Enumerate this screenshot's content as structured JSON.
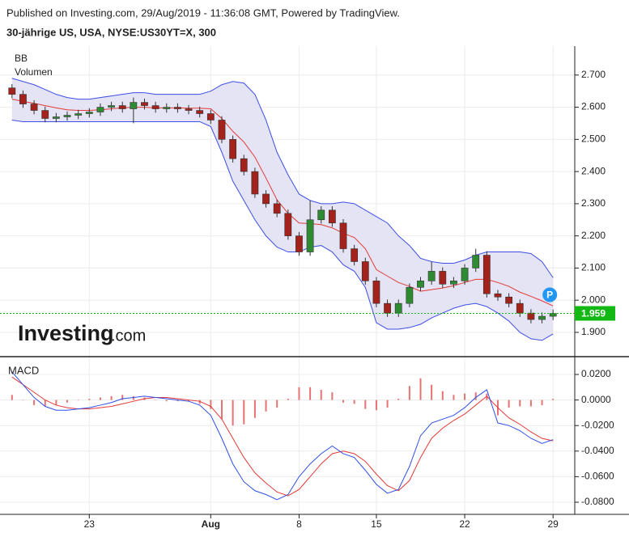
{
  "header": {
    "published": "Published on Investing.com, 29/Aug/2019 - 11:36:08 GMT, Powered by TradingView.",
    "symbol": "30-jährige US, USA, NYSE:US30YT=X, 300"
  },
  "logo": {
    "brand": "Investing",
    "suffix": ".com"
  },
  "chart_data": [
    {
      "type": "candlestick",
      "indicators": [
        "BB",
        "Volumen"
      ],
      "marker": "P",
      "open": [
        2.66,
        2.64,
        2.61,
        2.59,
        2.565,
        2.57,
        2.575,
        2.58,
        2.585,
        2.6,
        2.605,
        2.595,
        2.615,
        2.605,
        2.595,
        2.6,
        2.595,
        2.59,
        2.58,
        2.56,
        2.5,
        2.44,
        2.4,
        2.33,
        2.3,
        2.27,
        2.2,
        2.15,
        2.25,
        2.28,
        2.24,
        2.16,
        2.12,
        2.06,
        1.99,
        1.96,
        1.99,
        2.04,
        2.06,
        2.09,
        2.05,
        2.06,
        2.1,
        2.14,
        2.02,
        2.01,
        1.99,
        1.96,
        1.94,
        1.95
      ],
      "high": [
        2.672,
        2.652,
        2.622,
        2.602,
        2.582,
        2.587,
        2.592,
        2.597,
        2.612,
        2.617,
        2.617,
        2.63,
        2.627,
        2.617,
        2.612,
        2.612,
        2.607,
        2.602,
        2.592,
        2.572,
        2.512,
        2.452,
        2.412,
        2.342,
        2.312,
        2.282,
        2.212,
        2.31,
        2.292,
        2.292,
        2.252,
        2.172,
        2.132,
        2.072,
        2.002,
        2.002,
        2.052,
        2.072,
        2.12,
        2.102,
        2.072,
        2.112,
        2.16,
        2.152,
        2.032,
        2.022,
        2.002,
        1.972,
        1.962,
        1.971
      ],
      "low": [
        2.628,
        2.598,
        2.578,
        2.553,
        2.553,
        2.558,
        2.563,
        2.568,
        2.573,
        2.588,
        2.583,
        2.55,
        2.593,
        2.583,
        2.583,
        2.583,
        2.578,
        2.568,
        2.548,
        2.488,
        2.428,
        2.388,
        2.318,
        2.288,
        2.258,
        2.188,
        2.138,
        2.138,
        2.238,
        2.228,
        2.148,
        2.108,
        2.048,
        1.978,
        1.948,
        1.948,
        1.978,
        2.028,
        2.048,
        2.038,
        2.038,
        2.048,
        2.088,
        2.008,
        1.998,
        1.978,
        1.948,
        1.928,
        1.928,
        1.938
      ],
      "close": [
        2.64,
        2.61,
        2.59,
        2.565,
        2.57,
        2.575,
        2.58,
        2.585,
        2.6,
        2.605,
        2.595,
        2.615,
        2.605,
        2.595,
        2.6,
        2.595,
        2.59,
        2.58,
        2.56,
        2.5,
        2.44,
        2.4,
        2.33,
        2.3,
        2.27,
        2.2,
        2.15,
        2.25,
        2.28,
        2.24,
        2.16,
        2.12,
        2.06,
        1.99,
        1.96,
        1.99,
        2.04,
        2.06,
        2.09,
        2.05,
        2.06,
        2.1,
        2.14,
        2.02,
        2.01,
        1.99,
        1.96,
        1.94,
        1.95,
        1.959
      ],
      "up_color": "#2e8b32",
      "down_color": "#a3221c",
      "band_fill": "#e4e4f4",
      "upper": {
        "color": "#3d4ee6",
        "values": [
          2.69,
          2.68,
          2.67,
          2.655,
          2.64,
          2.63,
          2.625,
          2.625,
          2.63,
          2.635,
          2.64,
          2.645,
          2.645,
          2.64,
          2.64,
          2.64,
          2.64,
          2.64,
          2.65,
          2.67,
          2.68,
          2.675,
          2.64,
          2.56,
          2.46,
          2.39,
          2.33,
          2.31,
          2.3,
          2.3,
          2.305,
          2.3,
          2.28,
          2.26,
          2.24,
          2.2,
          2.17,
          2.13,
          2.12,
          2.115,
          2.115,
          2.125,
          2.14,
          2.15,
          2.15,
          2.15,
          2.15,
          2.145,
          2.12,
          2.07
        ]
      },
      "middle": {
        "color": "#e53935",
        "values": [
          2.625,
          2.618,
          2.612,
          2.605,
          2.598,
          2.592,
          2.59,
          2.59,
          2.592,
          2.595,
          2.598,
          2.6,
          2.6,
          2.598,
          2.598,
          2.598,
          2.597,
          2.597,
          2.595,
          2.565,
          2.525,
          2.492,
          2.445,
          2.38,
          2.312,
          2.27,
          2.24,
          2.238,
          2.235,
          2.225,
          2.208,
          2.195,
          2.16,
          2.095,
          2.075,
          2.055,
          2.043,
          2.028,
          2.033,
          2.038,
          2.045,
          2.055,
          2.065,
          2.065,
          2.055,
          2.043,
          2.025,
          2.012,
          1.998,
          1.982
        ]
      },
      "lower": {
        "color": "#3d4ee6",
        "values": [
          2.56,
          2.555,
          2.555,
          2.555,
          2.555,
          2.555,
          2.555,
          2.555,
          2.555,
          2.555,
          2.555,
          2.555,
          2.555,
          2.555,
          2.555,
          2.555,
          2.555,
          2.555,
          2.54,
          2.46,
          2.37,
          2.31,
          2.25,
          2.2,
          2.165,
          2.15,
          2.15,
          2.165,
          2.17,
          2.15,
          2.11,
          2.09,
          2.04,
          1.93,
          1.91,
          1.91,
          1.915,
          1.925,
          1.945,
          1.96,
          1.975,
          1.985,
          1.99,
          1.98,
          1.96,
          1.935,
          1.9,
          1.88,
          1.875,
          1.895
        ]
      },
      "last_price": 1.959,
      "last_price_color": "#14b814",
      "ylim": [
        1.827,
        2.79
      ],
      "yticks": [
        {
          "value": 1.9,
          "label": "1.900"
        },
        {
          "value": 2.0,
          "label": "2.000"
        },
        {
          "value": 2.1,
          "label": "2.100"
        },
        {
          "value": 2.2,
          "label": "2.200"
        },
        {
          "value": 2.3,
          "label": "2.300"
        },
        {
          "value": 2.4,
          "label": "2.400"
        },
        {
          "value": 2.5,
          "label": "2.500"
        },
        {
          "value": 2.6,
          "label": "2.600"
        },
        {
          "value": 2.7,
          "label": "2.700"
        }
      ],
      "grid": true
    },
    {
      "type": "macd",
      "title": "MACD",
      "categories": [
        null,
        null,
        null,
        null,
        null,
        null,
        null,
        "23",
        null,
        null,
        null,
        null,
        null,
        null,
        null,
        null,
        null,
        null,
        "Aug",
        null,
        null,
        null,
        null,
        null,
        null,
        null,
        "8",
        null,
        null,
        null,
        null,
        null,
        null,
        "15",
        null,
        null,
        null,
        null,
        null,
        null,
        null,
        "22",
        null,
        null,
        null,
        null,
        null,
        null,
        null,
        "29"
      ],
      "macd": {
        "color": "#2f4fe8",
        "values": [
          0.022,
          0.012,
          0.002,
          -0.005,
          -0.008,
          -0.008,
          -0.007,
          -0.006,
          -0.004,
          -0.002,
          0.001,
          0.002,
          0.003,
          0.002,
          0.001,
          0.0,
          -0.001,
          -0.004,
          -0.012,
          -0.03,
          -0.05,
          -0.064,
          -0.071,
          -0.074,
          -0.078,
          -0.074,
          -0.06,
          -0.05,
          -0.042,
          -0.036,
          -0.042,
          -0.045,
          -0.055,
          -0.066,
          -0.073,
          -0.07,
          -0.052,
          -0.028,
          -0.018,
          -0.015,
          -0.012,
          -0.006,
          0.002,
          0.008,
          -0.018,
          -0.02,
          -0.024,
          -0.03,
          -0.034,
          -0.031
        ]
      },
      "signal": {
        "color": "#e53935",
        "values": [
          0.018,
          0.012,
          0.006,
          0.0,
          -0.004,
          -0.006,
          -0.007,
          -0.007,
          -0.006,
          -0.005,
          -0.003,
          -0.001,
          0.001,
          0.002,
          0.002,
          0.001,
          0.0,
          -0.001,
          -0.005,
          -0.015,
          -0.03,
          -0.045,
          -0.057,
          -0.065,
          -0.072,
          -0.075,
          -0.07,
          -0.06,
          -0.05,
          -0.042,
          -0.04,
          -0.042,
          -0.048,
          -0.058,
          -0.067,
          -0.071,
          -0.063,
          -0.045,
          -0.03,
          -0.022,
          -0.016,
          -0.011,
          -0.004,
          0.003,
          -0.006,
          -0.014,
          -0.019,
          -0.025,
          -0.03,
          -0.032
        ]
      },
      "histogram": {
        "color": "#e57373",
        "values": [
          0.004,
          0,
          -0.004,
          -0.005,
          -0.004,
          -0.002,
          0,
          0.001,
          0.002,
          0.003,
          0.004,
          0.003,
          0.002,
          0,
          -0.001,
          -0.001,
          -0.001,
          -0.003,
          -0.007,
          -0.015,
          -0.02,
          -0.019,
          -0.014,
          -0.009,
          -0.006,
          0.001,
          0.01,
          0.01,
          0.008,
          0.006,
          -0.002,
          -0.003,
          -0.007,
          -0.008,
          -0.006,
          0.001,
          0.011,
          0.017,
          0.012,
          0.007,
          0.004,
          0.005,
          0.006,
          0.005,
          -0.012,
          -0.006,
          -0.005,
          -0.005,
          -0.004,
          0.001
        ]
      },
      "ylim": [
        -0.0895,
        0.0333
      ],
      "yticks": [
        {
          "value": -0.08,
          "label": "-0.0800"
        },
        {
          "value": -0.06,
          "label": "-0.0600"
        },
        {
          "value": -0.04,
          "label": "-0.0400"
        },
        {
          "value": -0.02,
          "label": "-0.0200"
        },
        {
          "value": 0,
          "label": "0.0000"
        },
        {
          "value": 0.02,
          "label": "0.0200"
        }
      ],
      "grid": true
    }
  ]
}
